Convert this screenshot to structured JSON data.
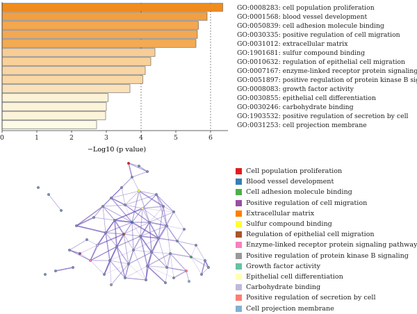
{
  "chart_data": {
    "type": "bar",
    "orientation": "horizontal",
    "categories": [
      "GO:0008283: cell population proliferation",
      "GO:0001568: blood vessel development",
      "GO:0050839: cell adhesion molecule binding",
      "GO:0030335: positive regulation of cell migration",
      "GO:0031012: extracellular matrix",
      "GO:1901681: sulfur compound binding",
      "GO:0010632: regulation of epithelial cell migration",
      "GO:0007167: enzyme-linked receptor protein signaling pathway",
      "GO:0051897: positive regulation of protein kinase B signaling",
      "GO:0008083: growth factor activity",
      "GO:0030855: epithelial cell differentiation",
      "GO:0030246: carbohydrate binding",
      "GO:1903532: positive regulation of secretion by cell",
      "GO:0031253: cell projection membrane"
    ],
    "values": [
      6.35,
      5.9,
      5.65,
      5.62,
      5.58,
      4.4,
      4.28,
      4.12,
      4.05,
      3.68,
      3.05,
      3.0,
      2.98,
      2.72
    ],
    "xlabel": "−Log10 (p value)",
    "xlim": [
      0,
      6.5
    ],
    "xticks": [
      "0",
      "1",
      "2",
      "3",
      "4",
      "5",
      "6"
    ],
    "reference_lines": [
      4,
      6
    ],
    "colors": {
      "bar_high": "#f08c1e",
      "bar_low": "#fdfbe6",
      "bar_stroke": "#555555",
      "axis": "#333333",
      "network_edge": "#6a4fb8",
      "network_node": "#7a90b0"
    }
  },
  "legend": [
    {
      "label": "Cell population proliferation",
      "color": "#e41a1c"
    },
    {
      "label": "Blood vessel development",
      "color": "#377eb8"
    },
    {
      "label": "Cell adhesion molecule binding",
      "color": "#4daf4a"
    },
    {
      "label": "Positive regulation of cell migration",
      "color": "#984ea3"
    },
    {
      "label": "Extracellular matrix",
      "color": "#ff7f00"
    },
    {
      "label": "Sulfur compound binding",
      "color": "#ffff33"
    },
    {
      "label": "Regulation of epithelial cell migration",
      "color": "#a65628"
    },
    {
      "label": "Enzyme-linked receptor protein signaling pathway",
      "color": "#f781bf"
    },
    {
      "label": "Positive regulation of protein kinase B signaling",
      "color": "#999999"
    },
    {
      "label": "Growth factor activity",
      "color": "#66c2a5"
    },
    {
      "label": "Epithelial cell differentiation",
      "color": "#ffffb3"
    },
    {
      "label": "Carbohydrate binding",
      "color": "#bebada"
    },
    {
      "label": "Positive regulation of secretion by cell",
      "color": "#fb8072"
    },
    {
      "label": "Cell projection membrane",
      "color": "#80b1d3"
    }
  ]
}
